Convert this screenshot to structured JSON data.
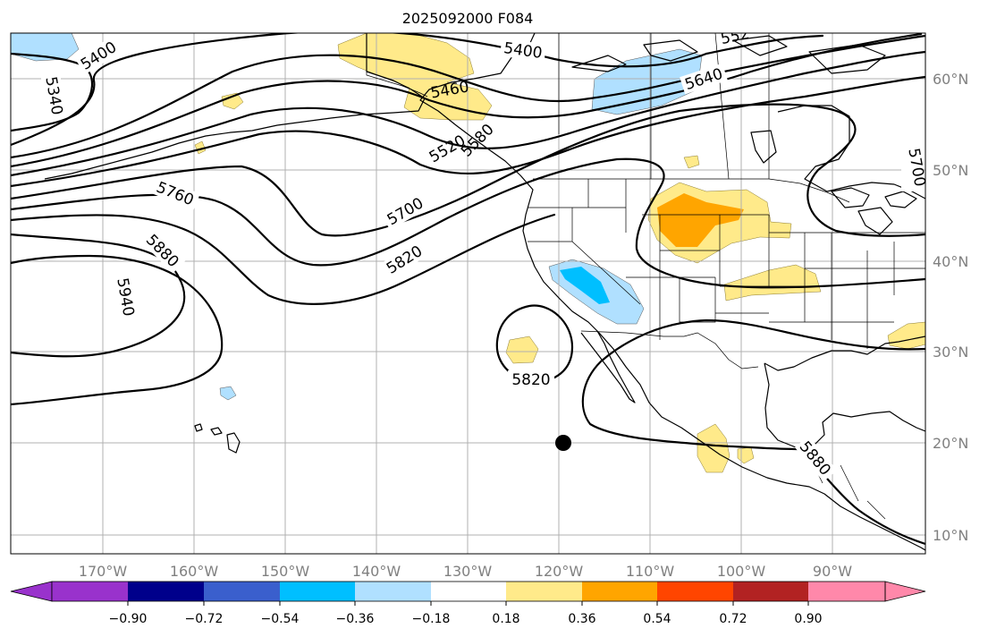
{
  "title": "2025092000 F084",
  "map": {
    "type": "geopotential-height-anomaly",
    "lon_range": [
      -180,
      -80
    ],
    "lat_range": [
      8,
      65
    ],
    "longitude_ticks": [
      "170°W",
      "160°W",
      "150°W",
      "140°W",
      "130°W",
      "120°W",
      "110°W",
      "100°W",
      "90°W"
    ],
    "latitude_ticks": [
      "60°N",
      "50°N",
      "40°N",
      "30°N",
      "20°N",
      "10°N"
    ],
    "grid": true,
    "contour_labels": [
      {
        "id": "c5400a",
        "text": "5400"
      },
      {
        "id": "c5400b",
        "text": "5400"
      },
      {
        "id": "c5340",
        "text": "5340"
      },
      {
        "id": "c5460",
        "text": "5460"
      },
      {
        "id": "c5520a",
        "text": "5520"
      },
      {
        "id": "c5520b",
        "text": "552"
      },
      {
        "id": "c5580",
        "text": "5580"
      },
      {
        "id": "c5640",
        "text": "5640"
      },
      {
        "id": "c5700a",
        "text": "5700"
      },
      {
        "id": "c5700b",
        "text": "5700"
      },
      {
        "id": "c5760",
        "text": "5760"
      },
      {
        "id": "c5820a",
        "text": "5820"
      },
      {
        "id": "c5820b",
        "text": "5820"
      },
      {
        "id": "c5880a",
        "text": "5880"
      },
      {
        "id": "c5880b",
        "text": "5880"
      },
      {
        "id": "c5940",
        "text": "5940"
      }
    ],
    "marker": {
      "name": "location-dot",
      "lon": -119.5,
      "lat": 20.0
    }
  },
  "colorbar": {
    "tick_labels": [
      "−0.90",
      "−0.72",
      "−0.54",
      "−0.36",
      "−0.18",
      "0.18",
      "0.36",
      "0.54",
      "0.72",
      "0.90"
    ],
    "colors": [
      "#9932cc",
      "#00008b",
      "#3a5fcd",
      "#00bfff",
      "#b0e0ff",
      "#ffffff",
      "#ffea8a",
      "#ffa500",
      "#ff4500",
      "#b22222",
      "#ff88aa"
    ]
  }
}
